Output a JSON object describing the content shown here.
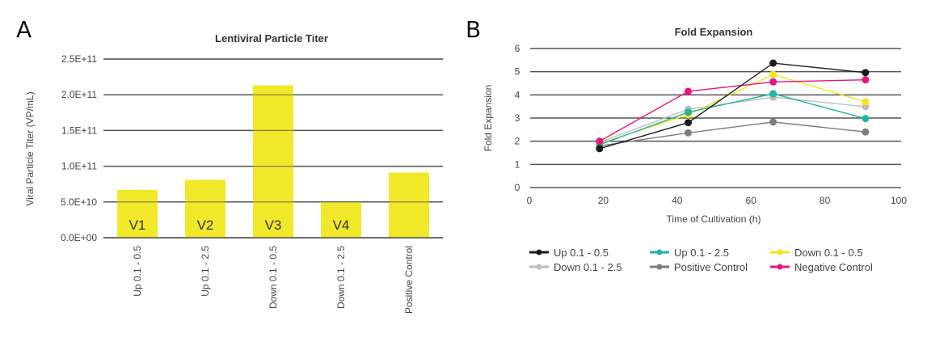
{
  "chart_data": [
    {
      "panel": "A",
      "type": "bar",
      "title": "Lentiviral Particle Titer",
      "xlabel": "",
      "ylabel": "Viral Particle Titer (VP/mL)",
      "ylim": [
        0,
        250000000000.0
      ],
      "yticks": [
        0,
        50000000000.0,
        100000000000.0,
        150000000000.0,
        200000000000.0,
        250000000000.0
      ],
      "ytick_labels": [
        "0.0E+00",
        "5.0E+10",
        "1.0E+11",
        "1.5E+11",
        "2.0E+11",
        "2.5E+11"
      ],
      "grid": true,
      "categories": [
        "Up 0.1 - 0.5",
        "Up 0.1 - 2.5",
        "Down 0.1 - 0.5",
        "Down 0.1 - 2.5",
        "Positive Control"
      ],
      "values": [
        67000000000.0,
        81000000000.0,
        213000000000.0,
        50000000000.0,
        91000000000.0
      ],
      "bar_labels": [
        "V1",
        "V2",
        "V3",
        "V4",
        ""
      ],
      "color": "#f0e828"
    },
    {
      "panel": "B",
      "type": "line",
      "title": "Fold Expansion",
      "xlabel": "Time of Cultivation (h)",
      "ylabel": "Fold Expansion",
      "xlim": [
        0,
        100
      ],
      "ylim": [
        0,
        6
      ],
      "xticks": [
        0,
        20,
        40,
        60,
        80,
        100
      ],
      "yticks": [
        0,
        1,
        2,
        3,
        4,
        5,
        6
      ],
      "grid": true,
      "legend_position": "bottom",
      "x": [
        19,
        43,
        66,
        91
      ],
      "series": [
        {
          "name": "Up 0.1 - 0.5",
          "color": "#1a1a1a",
          "values": [
            1.68,
            2.8,
            5.37,
            4.96
          ]
        },
        {
          "name": "Up 0.1 - 2.5",
          "color": "#1fb5a3",
          "values": [
            1.85,
            3.25,
            4.05,
            2.98
          ]
        },
        {
          "name": "Down 0.1 - 0.5",
          "color": "#f2e418",
          "values": [
            1.9,
            3.15,
            4.88,
            3.7
          ]
        },
        {
          "name": "Down 0.1 - 2.5",
          "color": "#bdbdbd",
          "values": [
            1.95,
            3.38,
            3.9,
            3.49
          ]
        },
        {
          "name": "Positive Control",
          "color": "#7d7d7d",
          "values": [
            1.8,
            2.36,
            2.83,
            2.4
          ]
        },
        {
          "name": "Negative Control",
          "color": "#e8147f",
          "values": [
            2.0,
            4.15,
            4.56,
            4.65
          ]
        }
      ]
    }
  ],
  "panels": {
    "a_letter": "A",
    "b_letter": "B"
  }
}
